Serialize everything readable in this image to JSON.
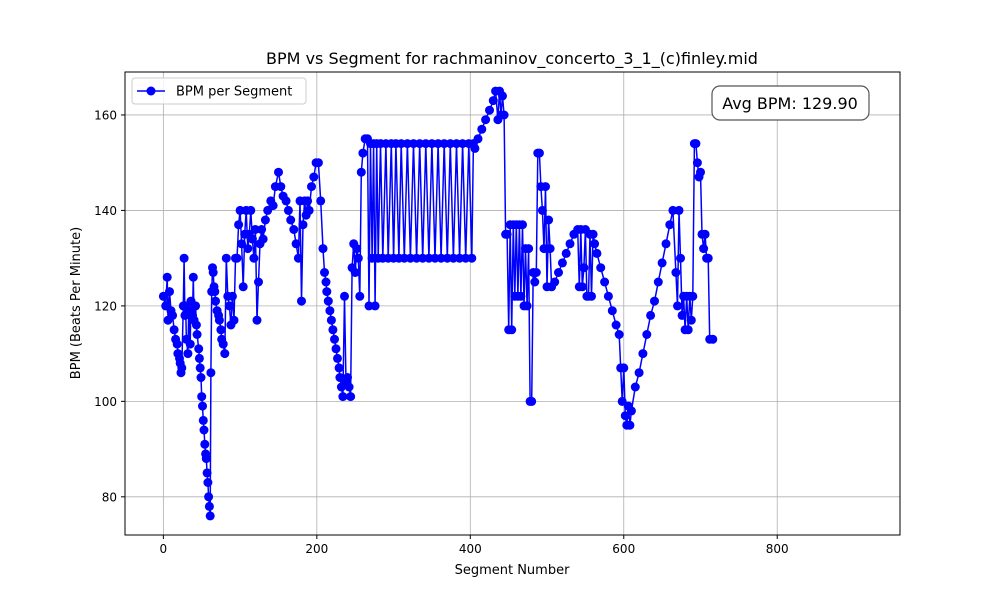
{
  "chart_data": {
    "type": "line",
    "title": "BPM vs Segment for rachmaninov_concerto_3_1_(c)finley.mid",
    "xlabel": "Segment Number",
    "ylabel": "BPM (Beats Per Minute)",
    "xlim": [
      -50,
      960
    ],
    "ylim": [
      72,
      169
    ],
    "xticks": [
      0,
      200,
      400,
      600,
      800
    ],
    "yticks": [
      80,
      100,
      120,
      140,
      160
    ],
    "grid": true,
    "legend_position": "upper-left",
    "annotation": "Avg BPM: 129.90",
    "series": [
      {
        "name": "BPM per Segment",
        "color": "#0000ff",
        "marker": "circle",
        "points": [
          [
            0,
            122
          ],
          [
            3,
            120
          ],
          [
            5,
            126
          ],
          [
            6,
            117
          ],
          [
            8,
            123
          ],
          [
            10,
            119
          ],
          [
            12,
            118
          ],
          [
            14,
            115
          ],
          [
            16,
            113
          ],
          [
            18,
            112
          ],
          [
            19,
            110
          ],
          [
            21,
            109
          ],
          [
            22,
            108
          ],
          [
            23,
            106
          ],
          [
            24,
            107
          ],
          [
            26,
            120
          ],
          [
            27,
            130
          ],
          [
            28,
            118
          ],
          [
            29,
            120
          ],
          [
            30,
            113
          ],
          [
            32,
            110
          ],
          [
            33,
            119
          ],
          [
            35,
            112
          ],
          [
            36,
            121
          ],
          [
            38,
            118
          ],
          [
            39,
            126
          ],
          [
            40,
            117
          ],
          [
            42,
            120
          ],
          [
            43,
            116
          ],
          [
            44,
            114
          ],
          [
            46,
            111
          ],
          [
            47,
            109
          ],
          [
            48,
            107
          ],
          [
            49,
            105
          ],
          [
            50,
            101
          ],
          [
            51,
            99
          ],
          [
            52,
            96
          ],
          [
            53,
            94
          ],
          [
            54,
            91
          ],
          [
            55,
            89
          ],
          [
            56,
            88
          ],
          [
            57,
            85
          ],
          [
            58,
            83
          ],
          [
            59,
            80
          ],
          [
            60,
            78
          ],
          [
            61,
            76
          ],
          [
            62,
            106
          ],
          [
            63,
            123
          ],
          [
            64,
            128
          ],
          [
            65,
            127
          ],
          [
            66,
            124
          ],
          [
            67,
            123
          ],
          [
            68,
            121
          ],
          [
            70,
            119
          ],
          [
            72,
            118
          ],
          [
            73,
            117
          ],
          [
            75,
            115
          ],
          [
            76,
            113
          ],
          [
            78,
            112
          ],
          [
            80,
            110
          ],
          [
            82,
            130
          ],
          [
            84,
            122
          ],
          [
            86,
            120
          ],
          [
            88,
            116
          ],
          [
            90,
            122
          ],
          [
            92,
            117
          ],
          [
            94,
            130
          ],
          [
            96,
            130
          ],
          [
            98,
            137
          ],
          [
            100,
            140
          ],
          [
            102,
            133
          ],
          [
            104,
            124
          ],
          [
            106,
            135
          ],
          [
            108,
            140
          ],
          [
            110,
            132
          ],
          [
            112,
            135
          ],
          [
            114,
            140
          ],
          [
            116,
            134
          ],
          [
            118,
            130
          ],
          [
            120,
            136
          ],
          [
            122,
            117
          ],
          [
            124,
            125
          ],
          [
            126,
            133
          ],
          [
            128,
            136
          ],
          [
            130,
            134
          ],
          [
            133,
            138
          ],
          [
            136,
            140
          ],
          [
            140,
            142
          ],
          [
            143,
            141
          ],
          [
            146,
            145
          ],
          [
            150,
            148
          ],
          [
            153,
            145
          ],
          [
            156,
            143
          ],
          [
            160,
            142
          ],
          [
            163,
            140
          ],
          [
            166,
            138
          ],
          [
            170,
            136
          ],
          [
            173,
            133
          ],
          [
            176,
            130
          ],
          [
            178,
            142
          ],
          [
            180,
            121
          ],
          [
            182,
            137
          ],
          [
            184,
            142
          ],
          [
            186,
            139
          ],
          [
            188,
            142
          ],
          [
            190,
            140
          ],
          [
            193,
            145
          ],
          [
            196,
            147
          ],
          [
            199,
            150
          ],
          [
            202,
            150
          ],
          [
            205,
            142
          ],
          [
            208,
            132
          ],
          [
            210,
            127
          ],
          [
            212,
            125
          ],
          [
            213,
            123
          ],
          [
            215,
            121
          ],
          [
            217,
            119
          ],
          [
            219,
            117
          ],
          [
            221,
            115
          ],
          [
            223,
            113
          ],
          [
            225,
            111
          ],
          [
            227,
            109
          ],
          [
            229,
            107
          ],
          [
            230,
            105
          ],
          [
            232,
            103
          ],
          [
            234,
            101
          ],
          [
            236,
            122
          ],
          [
            238,
            104
          ],
          [
            240,
            105
          ],
          [
            242,
            103
          ],
          [
            244,
            101
          ],
          [
            246,
            128
          ],
          [
            248,
            133
          ],
          [
            250,
            127
          ],
          [
            252,
            132
          ],
          [
            254,
            130
          ],
          [
            256,
            122
          ],
          [
            258,
            148
          ],
          [
            260,
            152
          ],
          [
            263,
            155
          ],
          [
            266,
            155
          ],
          [
            268,
            120
          ],
          [
            270,
            154
          ],
          [
            272,
            130
          ],
          [
            274,
            154
          ],
          [
            276,
            120
          ],
          [
            278,
            154
          ],
          [
            280,
            130
          ],
          [
            283,
            154
          ],
          [
            286,
            130
          ],
          [
            290,
            154
          ],
          [
            293,
            130
          ],
          [
            297,
            154
          ],
          [
            300,
            130
          ],
          [
            303,
            154
          ],
          [
            307,
            130
          ],
          [
            310,
            154
          ],
          [
            314,
            130
          ],
          [
            318,
            154
          ],
          [
            322,
            130
          ],
          [
            326,
            154
          ],
          [
            330,
            130
          ],
          [
            334,
            154
          ],
          [
            338,
            130
          ],
          [
            342,
            154
          ],
          [
            346,
            130
          ],
          [
            350,
            154
          ],
          [
            354,
            130
          ],
          [
            358,
            154
          ],
          [
            362,
            130
          ],
          [
            366,
            154
          ],
          [
            370,
            130
          ],
          [
            374,
            154
          ],
          [
            378,
            130
          ],
          [
            382,
            154
          ],
          [
            386,
            130
          ],
          [
            390,
            154
          ],
          [
            394,
            130
          ],
          [
            398,
            154
          ],
          [
            402,
            130
          ],
          [
            404,
            154
          ],
          [
            406,
            153
          ],
          [
            410,
            155
          ],
          [
            415,
            157
          ],
          [
            420,
            159
          ],
          [
            425,
            161
          ],
          [
            430,
            163
          ],
          [
            433,
            165
          ],
          [
            436,
            159
          ],
          [
            438,
            165
          ],
          [
            440,
            160
          ],
          [
            442,
            164
          ],
          [
            444,
            160
          ],
          [
            446,
            135
          ],
          [
            448,
            135
          ],
          [
            450,
            115
          ],
          [
            452,
            137
          ],
          [
            454,
            115
          ],
          [
            456,
            137
          ],
          [
            458,
            122
          ],
          [
            460,
            137
          ],
          [
            462,
            122
          ],
          [
            464,
            137
          ],
          [
            466,
            122
          ],
          [
            468,
            137
          ],
          [
            470,
            120
          ],
          [
            472,
            132
          ],
          [
            474,
            120
          ],
          [
            476,
            132
          ],
          [
            478,
            100
          ],
          [
            480,
            100
          ],
          [
            482,
            127
          ],
          [
            484,
            125
          ],
          [
            486,
            127
          ],
          [
            488,
            152
          ],
          [
            490,
            152
          ],
          [
            492,
            145
          ],
          [
            494,
            140
          ],
          [
            496,
            132
          ],
          [
            498,
            145
          ],
          [
            500,
            124
          ],
          [
            502,
            138
          ],
          [
            504,
            132
          ],
          [
            506,
            124
          ],
          [
            510,
            125
          ],
          [
            515,
            127
          ],
          [
            520,
            129
          ],
          [
            525,
            131
          ],
          [
            530,
            133
          ],
          [
            535,
            135
          ],
          [
            540,
            136
          ],
          [
            542,
            124
          ],
          [
            544,
            136
          ],
          [
            546,
            124
          ],
          [
            548,
            128
          ],
          [
            550,
            136
          ],
          [
            552,
            122
          ],
          [
            554,
            122
          ],
          [
            556,
            135
          ],
          [
            558,
            122
          ],
          [
            560,
            135
          ],
          [
            562,
            133
          ],
          [
            565,
            131
          ],
          [
            570,
            128
          ],
          [
            575,
            125
          ],
          [
            580,
            122
          ],
          [
            585,
            119
          ],
          [
            590,
            116
          ],
          [
            594,
            114
          ],
          [
            596,
            107
          ],
          [
            598,
            100
          ],
          [
            600,
            107
          ],
          [
            602,
            97
          ],
          [
            604,
            95
          ],
          [
            606,
            99
          ],
          [
            608,
            95
          ],
          [
            610,
            98
          ],
          [
            615,
            103
          ],
          [
            620,
            106
          ],
          [
            625,
            110
          ],
          [
            630,
            114
          ],
          [
            635,
            118
          ],
          [
            640,
            121
          ],
          [
            645,
            125
          ],
          [
            650,
            129
          ],
          [
            655,
            133
          ],
          [
            660,
            137
          ],
          [
            664,
            140
          ],
          [
            668,
            127
          ],
          [
            670,
            120
          ],
          [
            672,
            140
          ],
          [
            674,
            130
          ],
          [
            676,
            118
          ],
          [
            678,
            122
          ],
          [
            680,
            115
          ],
          [
            682,
            122
          ],
          [
            684,
            115
          ],
          [
            686,
            122
          ],
          [
            688,
            117
          ],
          [
            690,
            122
          ],
          [
            692,
            154
          ],
          [
            694,
            154
          ],
          [
            696,
            150
          ],
          [
            698,
            147
          ],
          [
            700,
            148
          ],
          [
            702,
            135
          ],
          [
            704,
            132
          ],
          [
            706,
            135
          ],
          [
            708,
            130
          ],
          [
            710,
            130
          ],
          [
            712,
            113
          ],
          [
            716,
            113
          ]
        ]
      }
    ]
  }
}
